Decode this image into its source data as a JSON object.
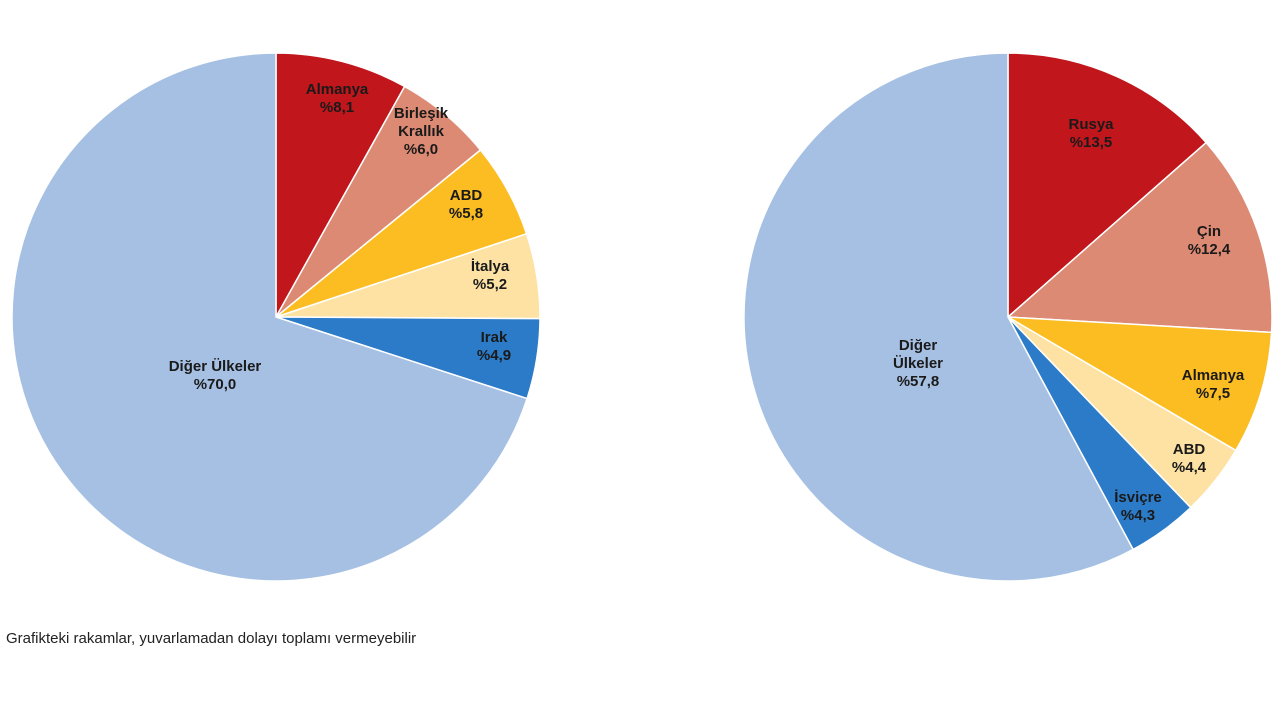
{
  "chart_data": [
    {
      "type": "pie",
      "start": "12-o-clock",
      "direction": "clockwise",
      "slices": [
        {
          "label": [
            "Almanya"
          ],
          "value_text": "%8,1",
          "value": 8.1,
          "color": "#c0161c"
        },
        {
          "label": [
            "Birleşik",
            "Krallık"
          ],
          "value_text": "%6,0",
          "value": 6.0,
          "color": "#dc8a73"
        },
        {
          "label": [
            "ABD"
          ],
          "value_text": "%5,8",
          "value": 5.8,
          "color": "#fbbd21"
        },
        {
          "label": [
            "İtalya"
          ],
          "value_text": "%5,2",
          "value": 5.2,
          "color": "#fde2a4"
        },
        {
          "label": [
            "Irak"
          ],
          "value_text": "%4,9",
          "value": 4.9,
          "color": "#2b7bc8"
        },
        {
          "label": [
            "Diğer Ülkeler"
          ],
          "value_text": "%70,0",
          "value": 70.0,
          "color": "#a6c0e3"
        }
      ]
    },
    {
      "type": "pie",
      "start": "12-o-clock",
      "direction": "clockwise",
      "slices": [
        {
          "label": [
            "Rusya"
          ],
          "value_text": "%13,5",
          "value": 13.5,
          "color": "#c0161c"
        },
        {
          "label": [
            "Çin"
          ],
          "value_text": "%12,4",
          "value": 12.4,
          "color": "#dc8a73"
        },
        {
          "label": [
            "Almanya"
          ],
          "value_text": "%7,5",
          "value": 7.5,
          "color": "#fbbd21"
        },
        {
          "label": [
            "ABD"
          ],
          "value_text": "%4,4",
          "value": 4.4,
          "color": "#fde2a4"
        },
        {
          "label": [
            "İsviçre"
          ],
          "value_text": "%4,3",
          "value": 4.3,
          "color": "#2b7bc8"
        },
        {
          "label": [
            "Diğer",
            "Ülkeler"
          ],
          "value_text": "%57,8",
          "value": 57.8,
          "color": "#a6c0e3"
        }
      ]
    }
  ],
  "footnote": "Grafikteki rakamlar, yuvarlamadan dolayı toplamı vermeyebilir"
}
